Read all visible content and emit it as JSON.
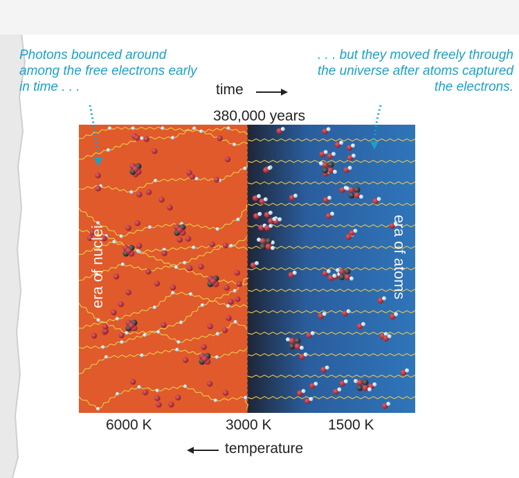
{
  "annotations": {
    "left_note": "Photons bounced around among the free electrons early in time . . .",
    "right_note": ". . . but they moved freely through the universe after atoms captured the electrons."
  },
  "axis": {
    "time_label": "time",
    "transition_label": "380,000 years",
    "temperature_label": "temperature",
    "temperature_ticks": [
      "6000 K",
      "3000 K",
      "1500 K"
    ]
  },
  "regions": {
    "left_label": "era of nuclei",
    "right_label": "era of atoms"
  },
  "colors": {
    "nuclei_era": "#e05a2b",
    "atoms_era": "#2d6fb3",
    "photon": "#e8c54a",
    "electron": "#6fb7e6",
    "proton": "#a6232d",
    "annotation_text": "#1f9fc6"
  }
}
